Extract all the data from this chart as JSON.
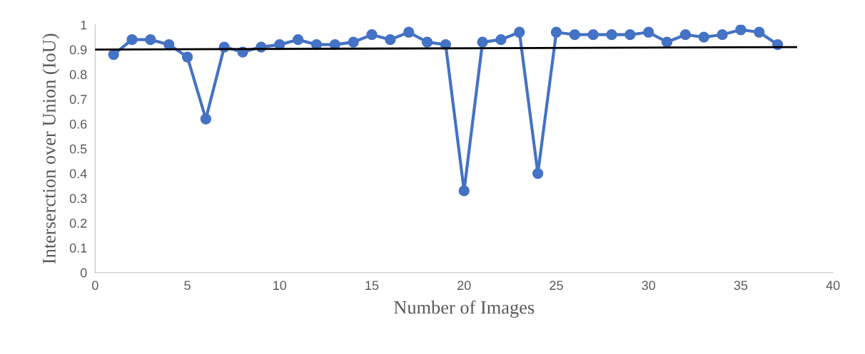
{
  "chart_data": {
    "type": "line",
    "xlabel": "Number of Images",
    "ylabel": "Interserction over Union (IoU)",
    "xlim": [
      0,
      40
    ],
    "xticks": [
      0,
      5,
      10,
      15,
      20,
      25,
      30,
      35,
      40
    ],
    "ylim": [
      0,
      1
    ],
    "yticks": [
      0,
      0.1,
      0.2,
      0.3,
      0.4,
      0.5,
      0.6,
      0.7,
      0.8,
      0.9,
      1
    ],
    "grid": false,
    "marker": "circle",
    "line_style": "solid",
    "series": [
      {
        "color": "#4472c4",
        "x": [
          1,
          2,
          3,
          4,
          5,
          6,
          7,
          8,
          9,
          10,
          11,
          12,
          13,
          14,
          15,
          16,
          17,
          18,
          19,
          20,
          21,
          22,
          23,
          24,
          25,
          26,
          27,
          28,
          29,
          30,
          31,
          32,
          33,
          34,
          35,
          36,
          37
        ],
        "values": [
          0.88,
          0.94,
          0.94,
          0.92,
          0.87,
          0.62,
          0.91,
          0.89,
          0.91,
          0.92,
          0.94,
          0.92,
          0.92,
          0.93,
          0.96,
          0.94,
          0.97,
          0.93,
          0.92,
          0.33,
          0.93,
          0.94,
          0.97,
          0.4,
          0.97,
          0.96,
          0.96,
          0.96,
          0.96,
          0.97,
          0.93,
          0.96,
          0.95,
          0.96,
          0.98,
          0.97,
          0.92
        ]
      },
      {
        "type": "line",
        "marker": "none",
        "color": "#000000",
        "x": [
          0,
          38
        ],
        "values": [
          0.9,
          0.91
        ]
      }
    ]
  }
}
